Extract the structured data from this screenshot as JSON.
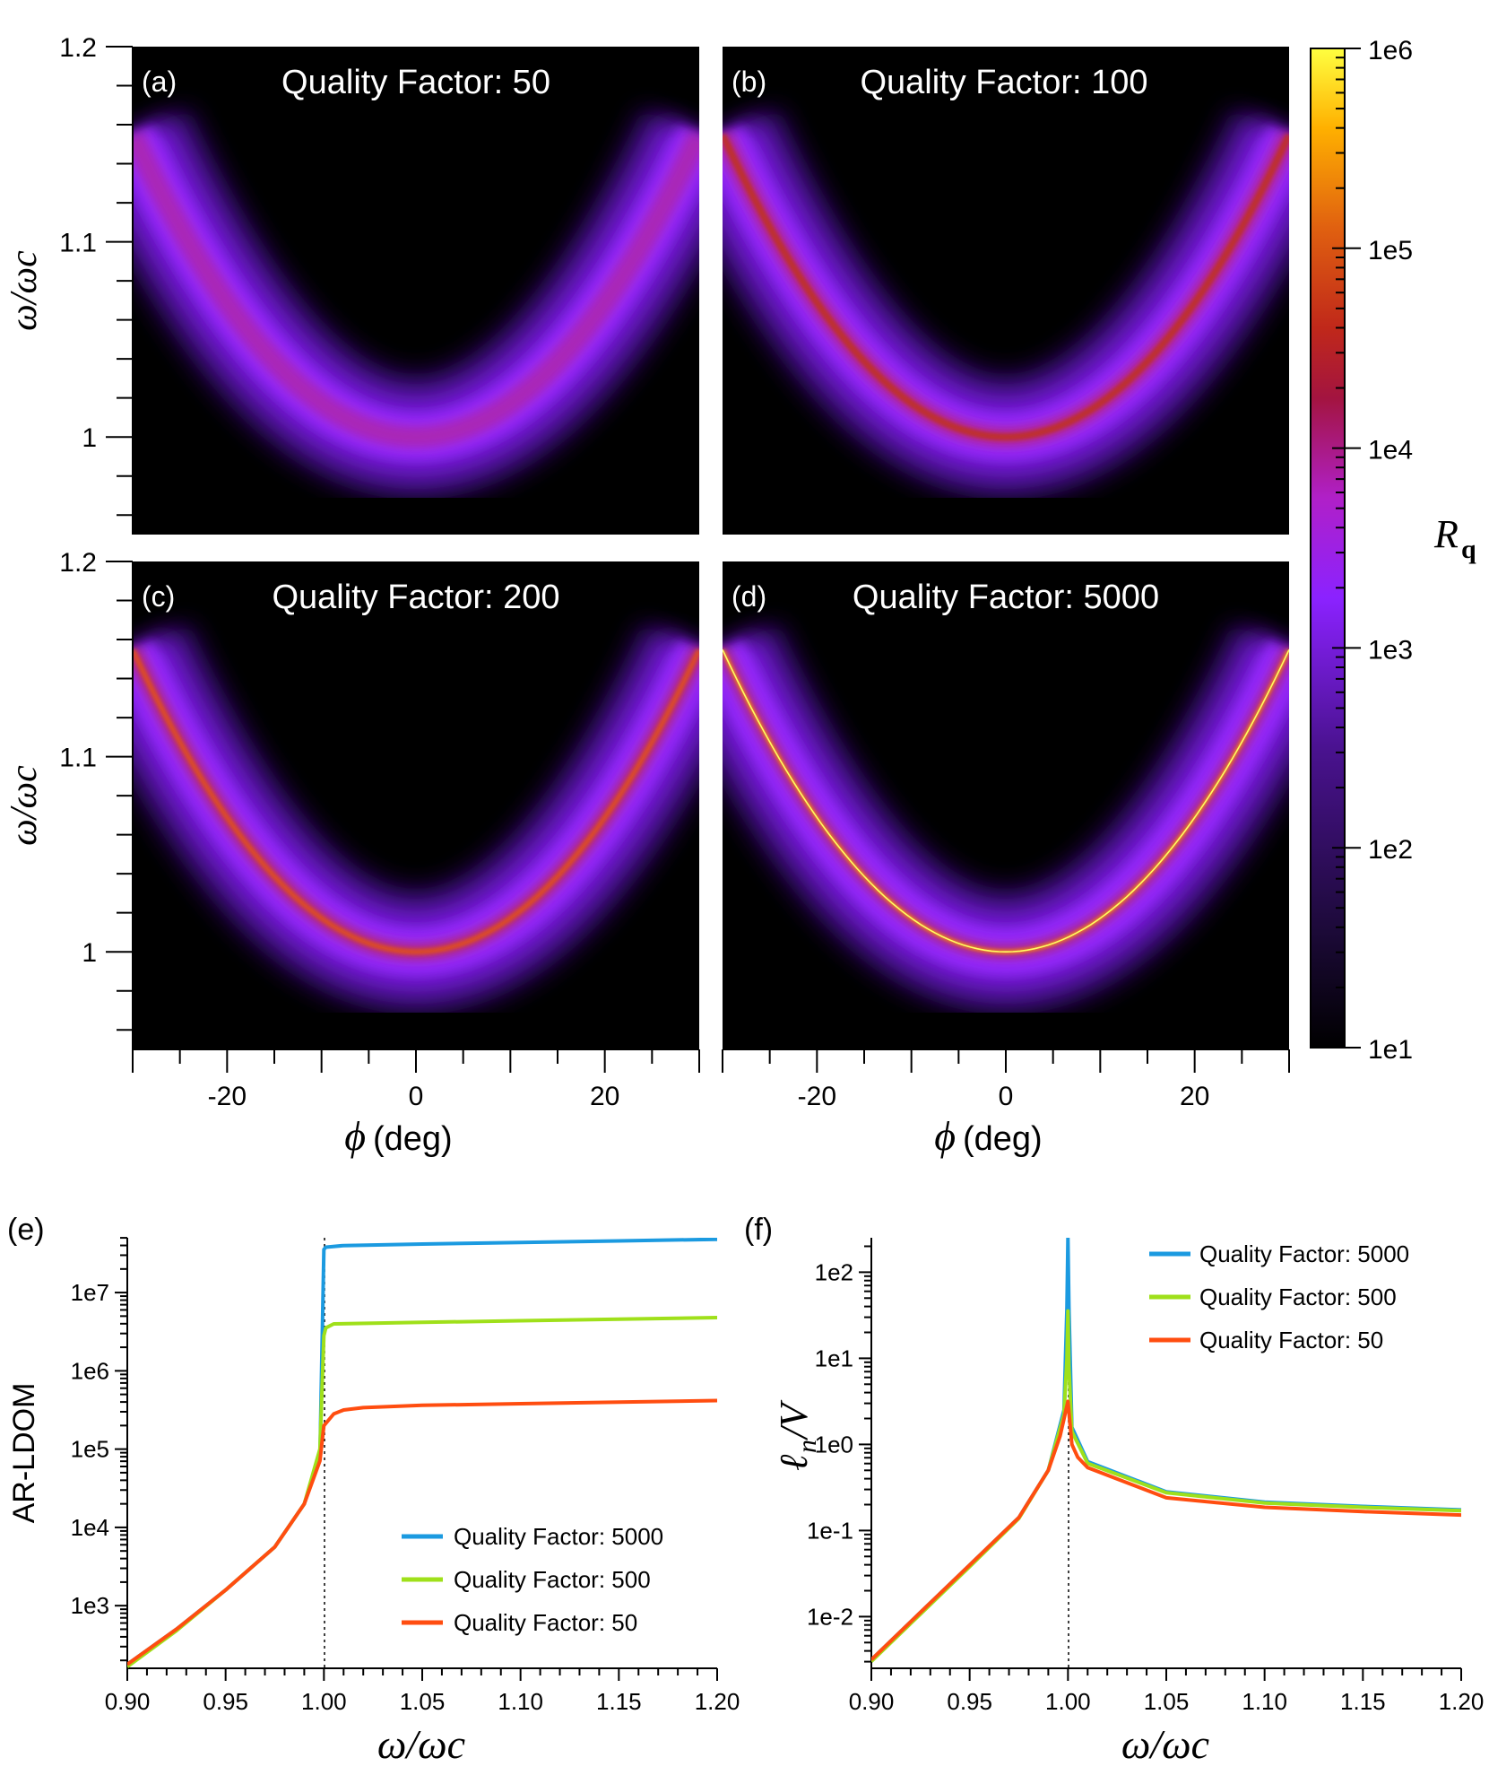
{
  "colors": {
    "quality_5000": "#1b9ae0",
    "quality_500": "#9fe01a",
    "quality_50": "#ff4d10",
    "map_background": "#000000"
  },
  "heatmap_panels": {
    "x_axis": {
      "label_symbol": "ϕ",
      "label_unit": "(deg)",
      "range": [
        -30,
        30
      ],
      "tick_labels": [
        "-20",
        "0",
        "20"
      ]
    },
    "y_axis": {
      "label": "ω/ωc",
      "range": [
        0.95,
        1.2
      ],
      "tick_labels": [
        "1",
        "1.1",
        "1.2"
      ]
    },
    "panels": [
      {
        "tag": "(a)",
        "title": "Quality Factor: 50"
      },
      {
        "tag": "(b)",
        "title": "Quality Factor: 100"
      },
      {
        "tag": "(c)",
        "title": "Quality Factor: 200"
      },
      {
        "tag": "(d)",
        "title": "Quality Factor: 5000"
      }
    ],
    "colorbar": {
      "label": "R",
      "label_sub": "q",
      "tick_labels": [
        "1e6",
        "1e5",
        "1e4",
        "1e3",
        "1e2",
        "1e1"
      ]
    }
  },
  "line_panels": {
    "e": {
      "tag": "(e)",
      "ylabel": "AR-LDOM",
      "xlabel": "ω/ωc",
      "x_tick_labels": [
        "0.90",
        "0.95",
        "1.00",
        "1.05",
        "1.10",
        "1.15",
        "1.20"
      ],
      "y_tick_labels": [
        "1e7",
        "1e6",
        "1e5",
        "1e4",
        "1e3"
      ],
      "legend": [
        "Quality Factor: 5000",
        "Quality Factor: 500",
        "Quality Factor: 50"
      ]
    },
    "f": {
      "tag": "(f)",
      "ylabel_main": "ℓ",
      "ylabel_sub": "n",
      "ylabel_tail": "/V",
      "xlabel": "ω/ωc",
      "x_tick_labels": [
        "0.90",
        "0.95",
        "1.00",
        "1.05",
        "1.10",
        "1.15",
        "1.20"
      ],
      "y_tick_labels": [
        "1e2",
        "1e1",
        "1e0",
        "1e-1",
        "1e-2"
      ],
      "legend": [
        "Quality Factor: 5000",
        "Quality Factor: 500",
        "Quality Factor: 50"
      ]
    }
  },
  "chart_data": [
    {
      "type": "heatmap",
      "title": "Quality Factor: 50",
      "xlabel": "ϕ (deg)",
      "ylabel": "ω/ωc",
      "xlim": [
        -30,
        30
      ],
      "ylim": [
        0.95,
        1.2
      ],
      "resonance_curve": {
        "phi": [
          -30,
          -20,
          -10,
          0,
          10,
          20,
          30
        ],
        "omega": [
          1.155,
          1.07,
          1.015,
          1.0,
          1.015,
          1.07,
          1.155
        ]
      },
      "quality_factor": 50
    },
    {
      "type": "heatmap",
      "title": "Quality Factor: 100",
      "xlabel": "ϕ (deg)",
      "ylabel": "ω/ωc",
      "xlim": [
        -30,
        30
      ],
      "ylim": [
        0.95,
        1.2
      ],
      "resonance_curve": {
        "phi": [
          -30,
          -20,
          -10,
          0,
          10,
          20,
          30
        ],
        "omega": [
          1.155,
          1.07,
          1.015,
          1.0,
          1.015,
          1.07,
          1.155
        ]
      },
      "quality_factor": 100
    },
    {
      "type": "heatmap",
      "title": "Quality Factor: 200",
      "xlabel": "ϕ (deg)",
      "ylabel": "ω/ωc",
      "xlim": [
        -30,
        30
      ],
      "ylim": [
        0.95,
        1.2
      ],
      "resonance_curve": {
        "phi": [
          -30,
          -20,
          -10,
          0,
          10,
          20,
          30
        ],
        "omega": [
          1.155,
          1.07,
          1.015,
          1.0,
          1.015,
          1.07,
          1.155
        ]
      },
      "quality_factor": 200
    },
    {
      "type": "heatmap",
      "title": "Quality Factor: 5000",
      "xlabel": "ϕ (deg)",
      "ylabel": "ω/ωc",
      "xlim": [
        -30,
        30
      ],
      "ylim": [
        0.95,
        1.2
      ],
      "resonance_curve": {
        "phi": [
          -30,
          -20,
          -10,
          0,
          10,
          20,
          30
        ],
        "omega": [
          1.155,
          1.07,
          1.015,
          1.0,
          1.015,
          1.07,
          1.155
        ]
      },
      "quality_factor": 5000
    },
    {
      "type": "line",
      "title": "(e)",
      "xlabel": "ω/ωc",
      "ylabel": "AR-LDOM",
      "xlim": [
        0.9,
        1.2
      ],
      "ylim_log10": [
        2.2,
        7.7
      ],
      "y_scale": "log",
      "series": [
        {
          "name": "Quality Factor: 5000",
          "x": [
            0.9,
            0.925,
            0.95,
            0.975,
            0.99,
            0.998,
            1.0,
            1.001,
            1.01,
            1.05,
            1.1,
            1.15,
            1.2
          ],
          "log10_y": [
            2.25,
            2.7,
            3.2,
            3.75,
            4.3,
            4.9,
            7.55,
            7.58,
            7.6,
            7.62,
            7.64,
            7.66,
            7.68
          ]
        },
        {
          "name": "Quality Factor: 500",
          "x": [
            0.9,
            0.925,
            0.95,
            0.975,
            0.99,
            0.998,
            1.0,
            1.001,
            1.005,
            1.05,
            1.1,
            1.15,
            1.2
          ],
          "log10_y": [
            2.22,
            2.68,
            3.2,
            3.75,
            4.3,
            5.0,
            6.45,
            6.55,
            6.6,
            6.62,
            6.64,
            6.66,
            6.68
          ]
        },
        {
          "name": "Quality Factor: 50",
          "x": [
            0.9,
            0.925,
            0.95,
            0.975,
            0.99,
            0.998,
            1.0,
            1.005,
            1.01,
            1.02,
            1.05,
            1.1,
            1.15,
            1.2
          ],
          "log10_y": [
            2.25,
            2.7,
            3.2,
            3.75,
            4.3,
            4.85,
            5.3,
            5.45,
            5.5,
            5.53,
            5.56,
            5.58,
            5.6,
            5.62
          ]
        }
      ]
    },
    {
      "type": "line",
      "title": "(f)",
      "xlabel": "ω/ωc",
      "ylabel": "ℓn/V",
      "xlim": [
        0.9,
        1.2
      ],
      "ylim_log10": [
        -2.6,
        2.4
      ],
      "y_scale": "log",
      "series": [
        {
          "name": "Quality Factor: 5000",
          "x": [
            0.9,
            0.925,
            0.95,
            0.975,
            0.99,
            0.998,
            0.9995,
            1.0,
            1.0005,
            1.002,
            1.01,
            1.05,
            1.1,
            1.15,
            1.2
          ],
          "log10_y": [
            -2.5,
            -1.95,
            -1.4,
            -0.85,
            -0.3,
            0.4,
            1.6,
            2.4,
            1.6,
            0.2,
            -0.2,
            -0.55,
            -0.67,
            -0.72,
            -0.76
          ]
        },
        {
          "name": "Quality Factor: 500",
          "x": [
            0.9,
            0.925,
            0.95,
            0.975,
            0.99,
            0.998,
            0.9995,
            1.0,
            1.0005,
            1.002,
            1.01,
            1.05,
            1.1,
            1.15,
            1.2
          ],
          "log10_y": [
            -2.52,
            -1.97,
            -1.42,
            -0.86,
            -0.3,
            0.35,
            1.0,
            1.55,
            0.9,
            0.15,
            -0.22,
            -0.56,
            -0.68,
            -0.73,
            -0.77
          ]
        },
        {
          "name": "Quality Factor: 50",
          "x": [
            0.9,
            0.925,
            0.95,
            0.975,
            0.99,
            0.996,
            1.0,
            1.002,
            1.005,
            1.01,
            1.05,
            1.1,
            1.15,
            1.2
          ],
          "log10_y": [
            -2.5,
            -1.95,
            -1.4,
            -0.85,
            -0.3,
            0.1,
            0.5,
            0.0,
            -0.15,
            -0.27,
            -0.62,
            -0.73,
            -0.78,
            -0.82
          ]
        }
      ]
    }
  ]
}
